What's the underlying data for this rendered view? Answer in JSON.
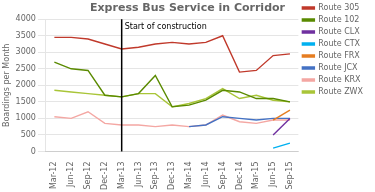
{
  "chart_data": {
    "type": "line",
    "title": "Express Bus Service in Corridor",
    "y_label": "Boardings per Month",
    "categories": [
      "Mar-12",
      "Jun-12",
      "Sep-12",
      "Dec-12",
      "Mar-13",
      "Jun-13",
      "Sep-13",
      "Dec-13",
      "Mar-14",
      "Jun-14",
      "Sep-14",
      "Dec-14",
      "Mar-15",
      "Jun-15",
      "Sep-15"
    ],
    "series": [
      {
        "name": "Route 305",
        "color": "#c0392b",
        "values": [
          3450,
          3450,
          3400,
          3250,
          3100,
          3150,
          3250,
          3300,
          3250,
          3300,
          3500,
          2400,
          2450,
          2900,
          2950
        ]
      },
      {
        "name": "Route 102",
        "color": "#5a8a00",
        "values": [
          2700,
          2500,
          2450,
          1700,
          1650,
          1750,
          2300,
          1350,
          1400,
          1550,
          1850,
          1800,
          1600,
          1600,
          1500
        ]
      },
      {
        "name": "Route CLX",
        "color": "#7030a0",
        "values": [
          null,
          null,
          null,
          null,
          null,
          null,
          null,
          null,
          null,
          null,
          null,
          null,
          null,
          500,
          1000
        ]
      },
      {
        "name": "Route CTX",
        "color": "#00b0f0",
        "values": [
          null,
          null,
          null,
          null,
          null,
          null,
          null,
          null,
          null,
          null,
          null,
          null,
          null,
          100,
          250
        ]
      },
      {
        "name": "Route FRX",
        "color": "#e67e22",
        "values": [
          null,
          null,
          null,
          null,
          null,
          null,
          null,
          null,
          null,
          null,
          null,
          null,
          null,
          950,
          1250
        ]
      },
      {
        "name": "Route JCX",
        "color": "#4472c4",
        "values": [
          null,
          null,
          null,
          null,
          null,
          null,
          null,
          null,
          750,
          800,
          1050,
          1000,
          950,
          1000,
          1000
        ]
      },
      {
        "name": "Route KRX",
        "color": "#f4a7a3",
        "values": [
          1050,
          1000,
          1200,
          850,
          800,
          800,
          750,
          800,
          750,
          800,
          1100,
          900,
          850,
          950,
          950
        ]
      },
      {
        "name": "Route ZWX",
        "color": "#a9c538",
        "values": [
          1850,
          1800,
          1750,
          1700,
          1650,
          1750,
          1750,
          1350,
          1450,
          1600,
          1900,
          1600,
          1700,
          1550,
          1500
        ]
      }
    ],
    "annotations": [
      {
        "text": "Start of construction",
        "x": "Mar-13",
        "y": 3700
      }
    ],
    "ylim": [
      0,
      4000
    ],
    "yticks": [
      0,
      500,
      1000,
      1500,
      2000,
      2500,
      3000,
      3500,
      4000
    ],
    "grid": true,
    "legend": "right"
  }
}
